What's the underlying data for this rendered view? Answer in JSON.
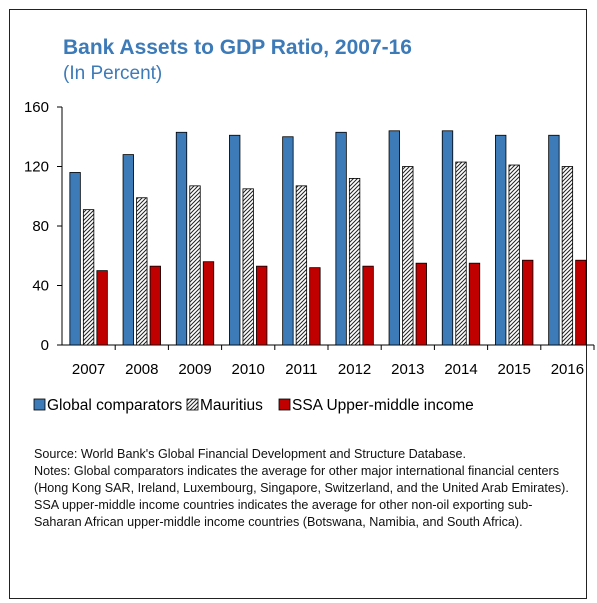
{
  "chart_data": {
    "type": "bar",
    "title": "Bank Assets to GDP Ratio, 2007-16",
    "subtitle": "(In Percent)",
    "xlabel": "",
    "ylabel": "",
    "ylim": [
      0,
      160
    ],
    "yticks": [
      0,
      40,
      80,
      120,
      160
    ],
    "grid": false,
    "legend": "bottom",
    "categories": [
      "2007",
      "2008",
      "2009",
      "2010",
      "2011",
      "2012",
      "2013",
      "2014",
      "2015",
      "2016"
    ],
    "series": [
      {
        "name": "Global comparators",
        "color": "#3d7ab8",
        "pattern": "solid",
        "values": [
          116,
          128,
          143,
          141,
          140,
          143,
          144,
          144,
          141,
          141
        ]
      },
      {
        "name": "Mauritius",
        "color": "#ffffff",
        "pattern": "hatched",
        "values": [
          91,
          99,
          107,
          105,
          107,
          112,
          120,
          123,
          121,
          120
        ]
      },
      {
        "name": "SSA Upper-middle income",
        "color": "#c00000",
        "pattern": "solid",
        "values": [
          50,
          53,
          56,
          53,
          52,
          53,
          55,
          55,
          57,
          57
        ]
      }
    ]
  },
  "notes": {
    "source": "Source: World Bank's Global Financial Development and Structure Database.",
    "body": "Notes: Global comparators indicates the average for other major international financial centers (Hong Kong SAR, Ireland, Luxembourg, Singapore, Switzerland, and the United Arab Emirates). SSA upper-middle income countries indicates the average for other non-oil exporting sub-Saharan African upper-middle income countries (Botswana, Namibia, and South Africa)."
  }
}
